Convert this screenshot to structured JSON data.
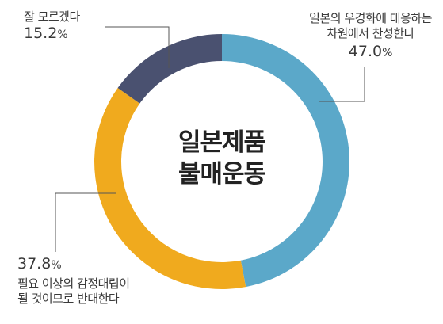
{
  "chart_data": {
    "type": "pie",
    "donut": true,
    "center_title": [
      "일본제품",
      "불매운동"
    ],
    "categories": [
      "일본의 우경화에 대응하는 차원에서 찬성한다",
      "필요 이상의 감정대립이 될 것이므로 반대한다",
      "잘 모르겠다"
    ],
    "values": [
      47.0,
      37.8,
      15.2
    ],
    "value_text": [
      "47.0",
      "37.8",
      "15.2"
    ],
    "unit": "%",
    "colors": [
      "#5ba8c9",
      "#f0aa1e",
      "#4a5170"
    ],
    "label_lines": [
      [
        "일본의 우경화에 대응하는",
        "차원에서 찬성한다"
      ],
      [
        "필요 이상의 감정대립이",
        "될 것이므로 반대한다"
      ],
      [
        "잘 모르겠다"
      ]
    ]
  }
}
